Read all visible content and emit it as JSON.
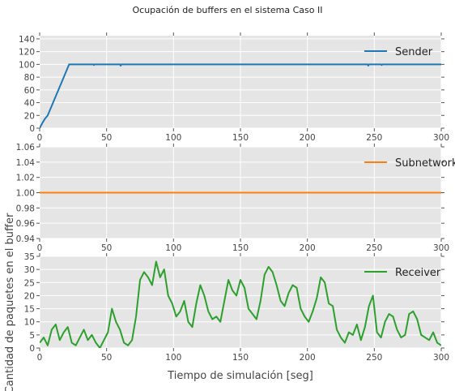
{
  "figure": {
    "title": "Ocupación de buffers en el sistema Caso II",
    "ylabel": "Cantidad de paquetes en el buffer",
    "xlabel": "Tiempo de simulación [seg]"
  },
  "chart_data": [
    {
      "type": "line",
      "title": "",
      "xlabel": "",
      "ylabel": "",
      "xlim": [
        0,
        300
      ],
      "ylim": [
        0,
        145
      ],
      "xticks": [
        0,
        50,
        100,
        150,
        200,
        250,
        300
      ],
      "yticks": [
        0,
        20,
        40,
        60,
        80,
        100,
        120,
        140
      ],
      "ytick_labels": [
        "0",
        "20",
        "40",
        "60",
        "80",
        "100",
        "120",
        "140"
      ],
      "grid": true,
      "legend_position": "top-right",
      "series": [
        {
          "name": "Sender",
          "color": "#1f77b4",
          "x": [
            0,
            2,
            4,
            6,
            8,
            10,
            14,
            18,
            22,
            40,
            40.5,
            41,
            60,
            60.5,
            61,
            80,
            100,
            120,
            140,
            160,
            180,
            200,
            220,
            240,
            245,
            245.5,
            246,
            255,
            255.5,
            256,
            270,
            290,
            300
          ],
          "y": [
            0,
            8,
            15,
            20,
            30,
            40,
            60,
            80,
            100,
            100,
            99,
            100,
            100,
            98,
            100,
            100,
            100,
            100,
            100,
            100,
            100,
            100,
            100,
            100,
            100,
            98,
            100,
            100,
            99,
            100,
            100,
            100,
            100
          ]
        }
      ]
    },
    {
      "type": "line",
      "title": "",
      "xlabel": "",
      "ylabel": "",
      "xlim": [
        0,
        300
      ],
      "ylim": [
        0.94,
        1.06
      ],
      "xticks": [
        0,
        50,
        100,
        150,
        200,
        250,
        300
      ],
      "yticks": [
        0.94,
        0.96,
        0.98,
        1.0,
        1.02,
        1.04,
        1.06
      ],
      "ytick_labels": [
        "0.94",
        "0.96",
        "0.98",
        "1.00",
        "1.02",
        "1.04",
        "1.06"
      ],
      "grid": true,
      "legend_position": "top-right",
      "series": [
        {
          "name": "Subnetwork",
          "color": "#ff7f0e",
          "x": [
            0,
            300
          ],
          "y": [
            1.0,
            1.0
          ]
        }
      ]
    },
    {
      "type": "line",
      "title": "",
      "xlabel": "",
      "ylabel": "",
      "xlim": [
        0,
        300
      ],
      "ylim": [
        0,
        35
      ],
      "xticks": [
        0,
        50,
        100,
        150,
        200,
        250,
        300
      ],
      "yticks": [
        0,
        5,
        10,
        15,
        20,
        25,
        30,
        35
      ],
      "ytick_labels": [
        "0",
        "5",
        "10",
        "15",
        "20",
        "25",
        "30",
        "35"
      ],
      "grid": true,
      "legend_position": "top-right",
      "series": [
        {
          "name": "Receiver",
          "color": "#2ca02c",
          "x": [
            0,
            3,
            6,
            9,
            12,
            15,
            18,
            21,
            24,
            27,
            30,
            33,
            36,
            39,
            42,
            45,
            48,
            51,
            54,
            57,
            60,
            63,
            66,
            69,
            72,
            75,
            78,
            81,
            84,
            87,
            90,
            93,
            96,
            99,
            102,
            105,
            108,
            111,
            114,
            117,
            120,
            123,
            126,
            129,
            132,
            135,
            138,
            141,
            144,
            147,
            150,
            153,
            156,
            159,
            162,
            165,
            168,
            171,
            174,
            177,
            180,
            183,
            186,
            189,
            192,
            195,
            198,
            201,
            204,
            207,
            210,
            213,
            216,
            219,
            222,
            225,
            228,
            231,
            234,
            237,
            240,
            243,
            246,
            249,
            252,
            255,
            258,
            261,
            264,
            267,
            270,
            273,
            276,
            279,
            282,
            285,
            288,
            291,
            294,
            297,
            300
          ],
          "y": [
            2,
            4,
            1,
            7,
            9,
            3,
            6,
            8,
            2,
            1,
            4,
            7,
            3,
            5,
            2,
            0,
            3,
            6,
            15,
            10,
            7,
            2,
            1,
            3,
            12,
            26,
            29,
            27,
            24,
            33,
            27,
            30,
            20,
            17,
            12,
            14,
            18,
            10,
            8,
            17,
            24,
            20,
            14,
            11,
            12,
            10,
            18,
            26,
            22,
            20,
            26,
            23,
            15,
            13,
            11,
            18,
            28,
            31,
            29,
            24,
            18,
            16,
            21,
            24,
            23,
            15,
            12,
            10,
            14,
            19,
            27,
            25,
            17,
            16,
            7,
            4,
            2,
            6,
            5,
            9,
            3,
            8,
            16,
            20,
            6,
            4,
            10,
            13,
            12,
            7,
            4,
            5,
            13,
            14,
            11,
            5,
            4,
            3,
            6,
            2,
            1
          ]
        }
      ]
    }
  ]
}
